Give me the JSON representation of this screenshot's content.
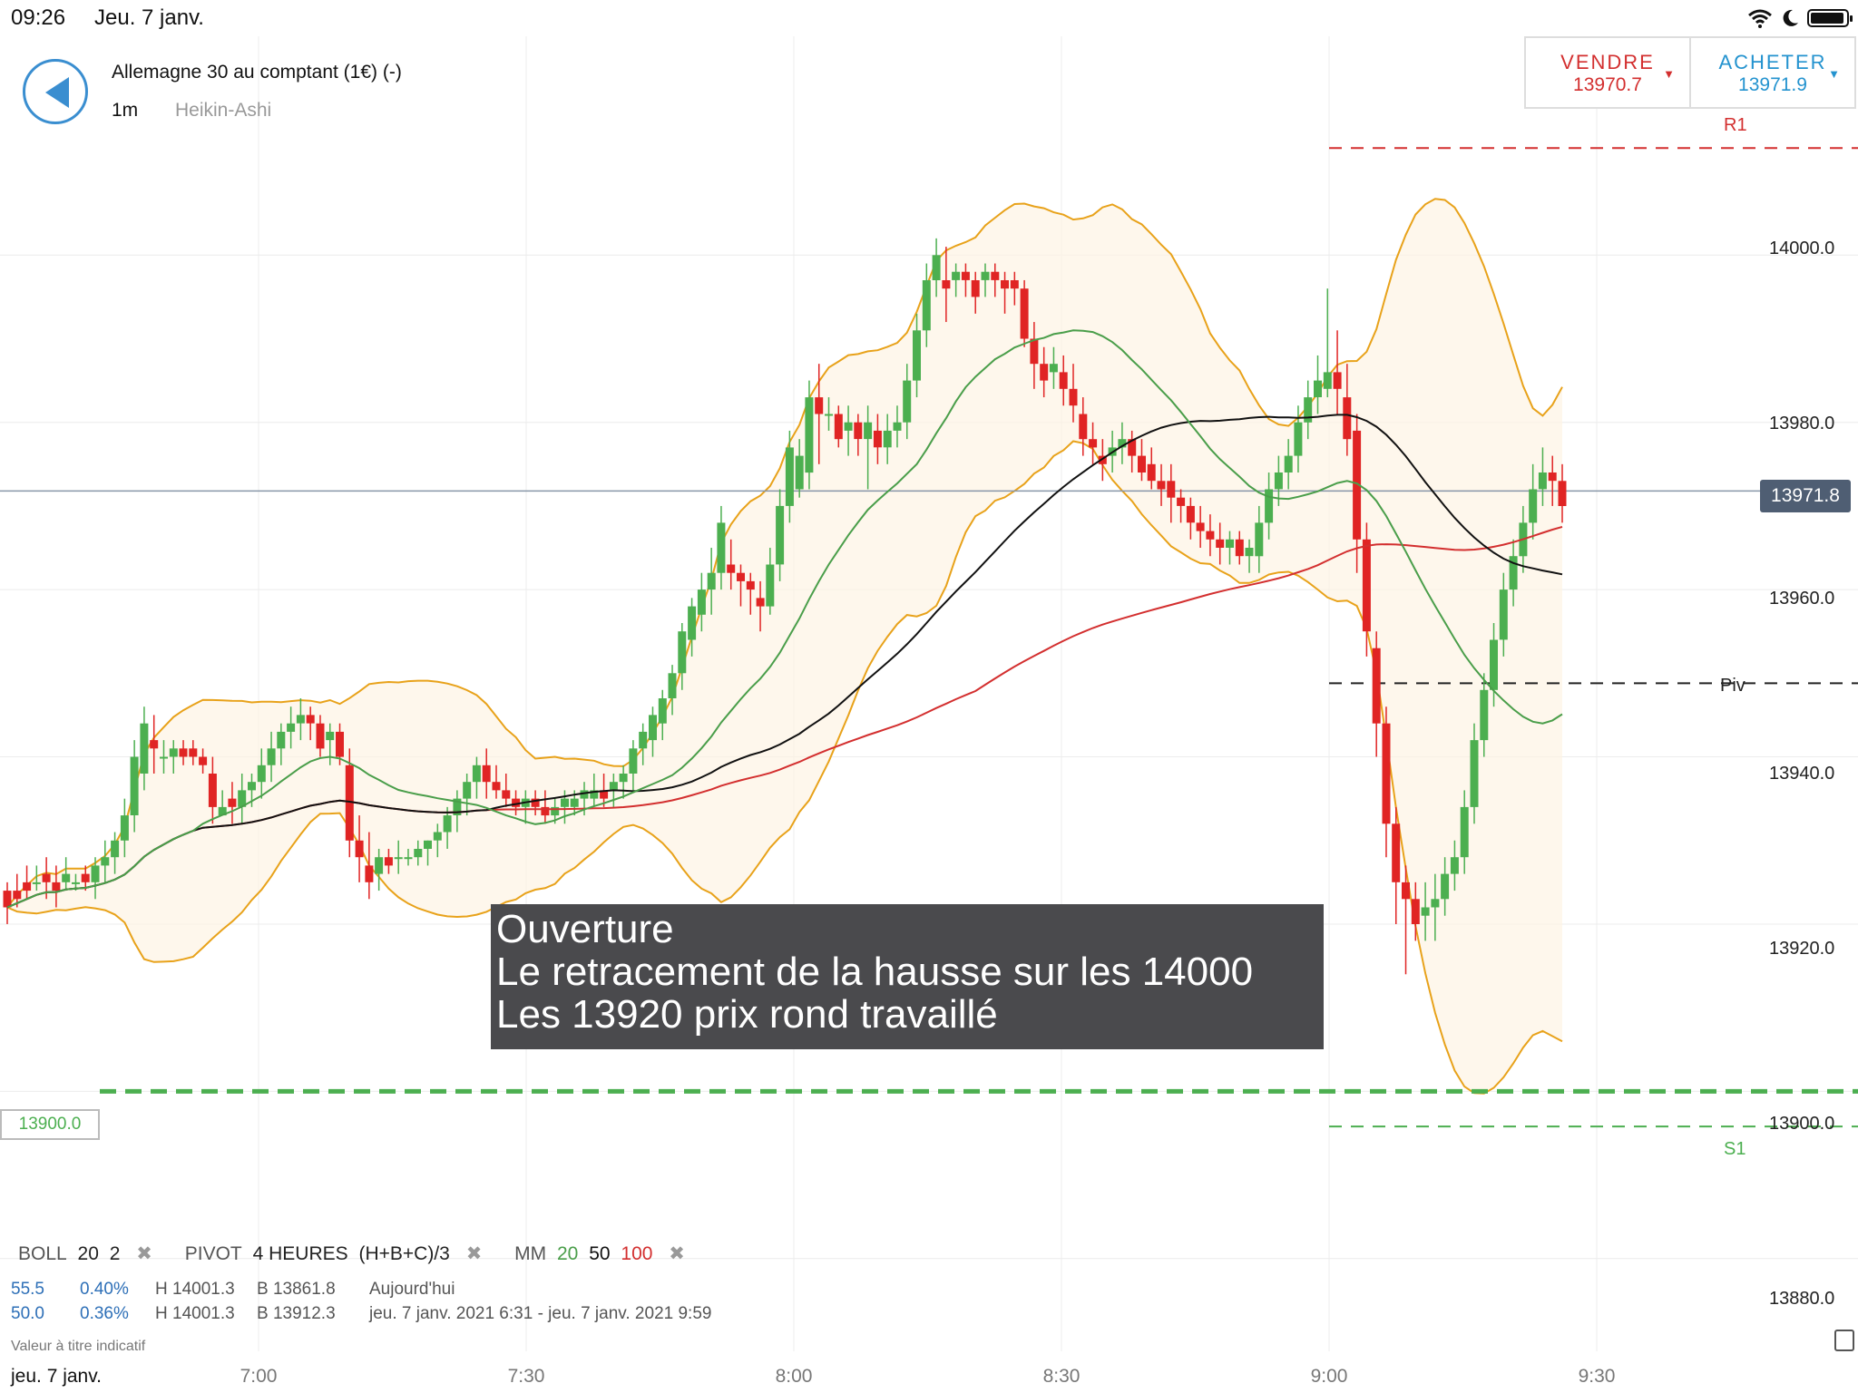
{
  "status_bar": {
    "time": "09:26",
    "date": "Jeu. 7 janv."
  },
  "header": {
    "instrument": "Allemagne 30 au comptant (1€) (-)",
    "timeframe": "1m",
    "chart_type": "Heikin-Ashi"
  },
  "trade": {
    "sell_label": "VENDRE",
    "sell_price": "13970.7",
    "buy_label": "ACHETER",
    "buy_price": "13971.9",
    "sell_color": "#d32f2f",
    "buy_color": "#2493cf"
  },
  "price_axis": {
    "ticks": [
      "14000.0",
      "13980.0",
      "13960.0",
      "13940.0",
      "13920.0",
      "13900.0",
      "13880.0"
    ],
    "last_price": "13971.8"
  },
  "time_axis": {
    "date": "jeu. 7 janv.",
    "ticks": [
      "7:00",
      "7:30",
      "8:00",
      "8:30",
      "9:00",
      "9:30"
    ]
  },
  "levels": {
    "r1_label": "R1",
    "r1": 14012.8,
    "pivot_label": "Piv",
    "pivot": 13948.8,
    "s1_label": "S1",
    "s1": 13895.8,
    "alert": "13900.0"
  },
  "annotation": {
    "line1": "Ouverture",
    "line2": "Le retracement de la hausse sur les 14000",
    "line3": "Les 13920 prix rond travaillé"
  },
  "indicators": {
    "boll_label": "BOLL",
    "boll_period": "20",
    "boll_dev": "2",
    "pivot_label": "PIVOT",
    "pivot_period": "4 HEURES",
    "pivot_formula": "(H+B+C)/3",
    "ma_label": "MM",
    "ma1": "20",
    "ma2": "50",
    "ma3": "100",
    "ma1_color": "#4a9e4a",
    "ma2_color": "#111111",
    "ma3_color": "#d32f2f",
    "remove": "✖"
  },
  "stats": [
    {
      "v1": "55.5",
      "v2": "0.40%",
      "high": "H 14001.3",
      "low": "B 13861.8",
      "period": "Aujourd'hui"
    },
    {
      "v1": "50.0",
      "v2": "0.36%",
      "high": "H 14001.3",
      "low": "B 13912.3",
      "period": "jeu. 7 janv. 2021 6:31 - jeu. 7 janv. 2021 9:59"
    }
  ],
  "disclaimer": "Valeur à titre indicatif",
  "chart_data": {
    "type": "candlestick",
    "y_range": [
      13870,
      14024
    ],
    "x_time_range": [
      "6:36",
      "9:32"
    ],
    "candle_up_color": "#4caf50",
    "candle_down_color": "#e02424",
    "candles_ohlc": [
      [
        13924,
        13925,
        13920,
        13922
      ],
      [
        13924,
        13926,
        13922,
        13923
      ],
      [
        13925,
        13927,
        13923,
        13924
      ],
      [
        13925,
        13927,
        13924,
        13925
      ],
      [
        13926,
        13928,
        13923,
        13925
      ],
      [
        13925,
        13927,
        13922,
        13924
      ],
      [
        13925,
        13928,
        13924,
        13926
      ],
      [
        13925,
        13926,
        13924,
        13925
      ],
      [
        13926,
        13927,
        13924,
        13925
      ],
      [
        13925,
        13928,
        13923,
        13927
      ],
      [
        13927,
        13930,
        13925,
        13928
      ],
      [
        13928,
        13931,
        13926,
        13930
      ],
      [
        13930,
        13935,
        13928,
        13933
      ],
      [
        13933,
        13942,
        13931,
        13940
      ],
      [
        13938,
        13946,
        13936,
        13944
      ],
      [
        13942,
        13945,
        13938,
        13941
      ],
      [
        13940,
        13942,
        13938,
        13940
      ],
      [
        13940,
        13942,
        13938,
        13941
      ],
      [
        13941,
        13942,
        13939,
        13940
      ],
      [
        13941,
        13942,
        13939,
        13940
      ],
      [
        13940,
        13941,
        13938,
        13939
      ],
      [
        13938,
        13940,
        13932,
        13934
      ],
      [
        13933,
        13936,
        13933,
        13934
      ],
      [
        13935,
        13937,
        13932,
        13934
      ],
      [
        13934,
        13938,
        13932,
        13936
      ],
      [
        13936,
        13938,
        13934,
        13937
      ],
      [
        13937,
        13941,
        13935,
        13939
      ],
      [
        13939,
        13943,
        13937,
        13941
      ],
      [
        13941,
        13944,
        13939,
        13943
      ],
      [
        13943,
        13946,
        13941,
        13944
      ],
      [
        13944,
        13947,
        13942,
        13945
      ],
      [
        13945,
        13946,
        13942,
        13944
      ],
      [
        13944,
        13945,
        13940,
        13941
      ],
      [
        13942,
        13944,
        13939,
        13943
      ],
      [
        13943,
        13944,
        13939,
        13940
      ],
      [
        13939,
        13941,
        13928,
        13930
      ],
      [
        13930,
        13933,
        13925,
        13928
      ],
      [
        13927,
        13931,
        13923,
        13925
      ],
      [
        13926,
        13929,
        13924,
        13928
      ],
      [
        13928,
        13929,
        13926,
        13927
      ],
      [
        13928,
        13930,
        13926,
        13928
      ],
      [
        13928,
        13929,
        13927,
        13928
      ],
      [
        13928,
        13930,
        13927,
        13929
      ],
      [
        13929,
        13930,
        13927,
        13930
      ],
      [
        13930,
        13932,
        13928,
        13931
      ],
      [
        13931,
        13934,
        13929,
        13933
      ],
      [
        13933,
        13936,
        13931,
        13935
      ],
      [
        13935,
        13938,
        13933,
        13937
      ],
      [
        13937,
        13940,
        13935,
        13939
      ],
      [
        13939,
        13941,
        13935,
        13937
      ],
      [
        13937,
        13939,
        13935,
        13936
      ],
      [
        13936,
        13938,
        13934,
        13935
      ],
      [
        13935,
        13936,
        13933,
        13934
      ],
      [
        13934,
        13936,
        13932,
        13935
      ],
      [
        13935,
        13936,
        13933,
        13934
      ],
      [
        13934,
        13936,
        13932,
        13933
      ],
      [
        13933,
        13935,
        13932,
        13934
      ],
      [
        13934,
        13936,
        13932,
        13935
      ],
      [
        13934,
        13936,
        13933,
        13935
      ],
      [
        13935,
        13937,
        13933,
        13936
      ],
      [
        13935,
        13938,
        13934,
        13936
      ],
      [
        13936,
        13938,
        13934,
        13935
      ],
      [
        13936,
        13938,
        13934,
        13937
      ],
      [
        13937,
        13939,
        13935,
        13938
      ],
      [
        13938,
        13942,
        13936,
        13941
      ],
      [
        13941,
        13944,
        13939,
        13943
      ],
      [
        13942,
        13946,
        13940,
        13945
      ],
      [
        13944,
        13948,
        13942,
        13947
      ],
      [
        13947,
        13951,
        13945,
        13950
      ],
      [
        13950,
        13956,
        13948,
        13955
      ],
      [
        13954,
        13959,
        13952,
        13958
      ],
      [
        13957,
        13962,
        13955,
        13960
      ],
      [
        13960,
        13965,
        13957,
        13962
      ],
      [
        13962,
        13970,
        13960,
        13968
      ],
      [
        13963,
        13966,
        13960,
        13962
      ],
      [
        13962,
        13963,
        13958,
        13961
      ],
      [
        13961,
        13962,
        13957,
        13960
      ],
      [
        13959,
        13961,
        13955,
        13958
      ],
      [
        13958,
        13965,
        13957,
        13963
      ],
      [
        13963,
        13972,
        13961,
        13970
      ],
      [
        13970,
        13979,
        13968,
        13977
      ],
      [
        13972,
        13978,
        13971,
        13976
      ],
      [
        13974,
        13985,
        13972,
        13983
      ],
      [
        13983,
        13987,
        13975,
        13981
      ],
      [
        13981,
        13983,
        13979,
        13981
      ],
      [
        13981,
        13982,
        13977,
        13978
      ],
      [
        13979,
        13982,
        13976,
        13980
      ],
      [
        13980,
        13981,
        13976,
        13978
      ],
      [
        13978,
        13982,
        13972,
        13980
      ],
      [
        13979,
        13981,
        13975,
        13977
      ],
      [
        13977,
        13981,
        13975,
        13979
      ],
      [
        13979,
        13982,
        13977,
        13980
      ],
      [
        13980,
        13987,
        13978,
        13985
      ],
      [
        13985,
        13993,
        13983,
        13991
      ],
      [
        13991,
        13999,
        13989,
        13997
      ],
      [
        13997,
        14002,
        13995,
        14000
      ],
      [
        13997,
        14001,
        13992,
        13996
      ],
      [
        13997,
        13999,
        13995,
        13998
      ],
      [
        13998,
        13999,
        13995,
        13997
      ],
      [
        13997,
        13998,
        13993,
        13995
      ],
      [
        13997,
        13999,
        13995,
        13998
      ],
      [
        13998,
        13999,
        13995,
        13997
      ],
      [
        13997,
        13998,
        13993,
        13996
      ],
      [
        13997,
        13998,
        13994,
        13996
      ],
      [
        13996,
        13997,
        13989,
        13990
      ],
      [
        13990,
        13992,
        13984,
        13987
      ],
      [
        13987,
        13989,
        13983,
        13985
      ],
      [
        13986,
        13989,
        13984,
        13987
      ],
      [
        13986,
        13988,
        13982,
        13984
      ],
      [
        13984,
        13987,
        13980,
        13982
      ],
      [
        13981,
        13983,
        13976,
        13978
      ],
      [
        13978,
        13980,
        13975,
        13977
      ],
      [
        13976,
        13978,
        13973,
        13975
      ],
      [
        13976,
        13979,
        13974,
        13977
      ],
      [
        13977,
        13980,
        13975,
        13978
      ],
      [
        13978,
        13979,
        13974,
        13976
      ],
      [
        13976,
        13978,
        13973,
        13974
      ],
      [
        13975,
        13977,
        13972,
        13973
      ],
      [
        13973,
        13975,
        13970,
        13972
      ],
      [
        13973,
        13975,
        13968,
        13971
      ],
      [
        13971,
        13972,
        13968,
        13970
      ],
      [
        13970,
        13971,
        13966,
        13968
      ],
      [
        13968,
        13970,
        13965,
        13967
      ],
      [
        13967,
        13969,
        13964,
        13966
      ],
      [
        13966,
        13968,
        13963,
        13965
      ],
      [
        13965,
        13967,
        13963,
        13966
      ],
      [
        13966,
        13967,
        13963,
        13964
      ],
      [
        13964,
        13966,
        13962,
        13965
      ],
      [
        13964,
        13970,
        13962,
        13968
      ],
      [
        13968,
        13974,
        13966,
        13972
      ],
      [
        13972,
        13976,
        13970,
        13974
      ],
      [
        13974,
        13978,
        13972,
        13976
      ],
      [
        13976,
        13982,
        13974,
        13980
      ],
      [
        13980,
        13985,
        13978,
        13983
      ],
      [
        13983,
        13988,
        13981,
        13985
      ],
      [
        13984,
        13996,
        13983,
        13986
      ],
      [
        13986,
        13991,
        13981,
        13984
      ],
      [
        13983,
        13987,
        13976,
        13978
      ],
      [
        13979,
        13981,
        13962,
        13966
      ],
      [
        13966,
        13968,
        13952,
        13955
      ],
      [
        13953,
        13955,
        13940,
        13944
      ],
      [
        13944,
        13946,
        13928,
        13932
      ],
      [
        13932,
        13934,
        13920,
        13925
      ],
      [
        13925,
        13927,
        13914,
        13923
      ],
      [
        13923,
        13925,
        13918,
        13920
      ],
      [
        13921,
        13925,
        13918,
        13922
      ],
      [
        13922,
        13926,
        13918,
        13923
      ],
      [
        13923,
        13928,
        13921,
        13926
      ],
      [
        13926,
        13930,
        13924,
        13928
      ],
      [
        13928,
        13936,
        13926,
        13934
      ],
      [
        13934,
        13944,
        13932,
        13942
      ],
      [
        13942,
        13950,
        13940,
        13948
      ],
      [
        13948,
        13956,
        13946,
        13954
      ],
      [
        13954,
        13962,
        13952,
        13960
      ],
      [
        13960,
        13966,
        13958,
        13964
      ],
      [
        13964,
        13970,
        13962,
        13968
      ],
      [
        13968,
        13975,
        13966,
        13972
      ],
      [
        13972,
        13977,
        13970,
        13974
      ],
      [
        13974,
        13976,
        13970,
        13973
      ],
      [
        13973,
        13975,
        13968,
        13970
      ]
    ],
    "series": [
      {
        "name": "MM 20",
        "color": "#4a9e4a"
      },
      {
        "name": "MM 50",
        "color": "#111111"
      },
      {
        "name": "MM 100",
        "color": "#d32f2f"
      },
      {
        "name": "BOLL 20 2",
        "color": "#e8a21a"
      }
    ]
  }
}
